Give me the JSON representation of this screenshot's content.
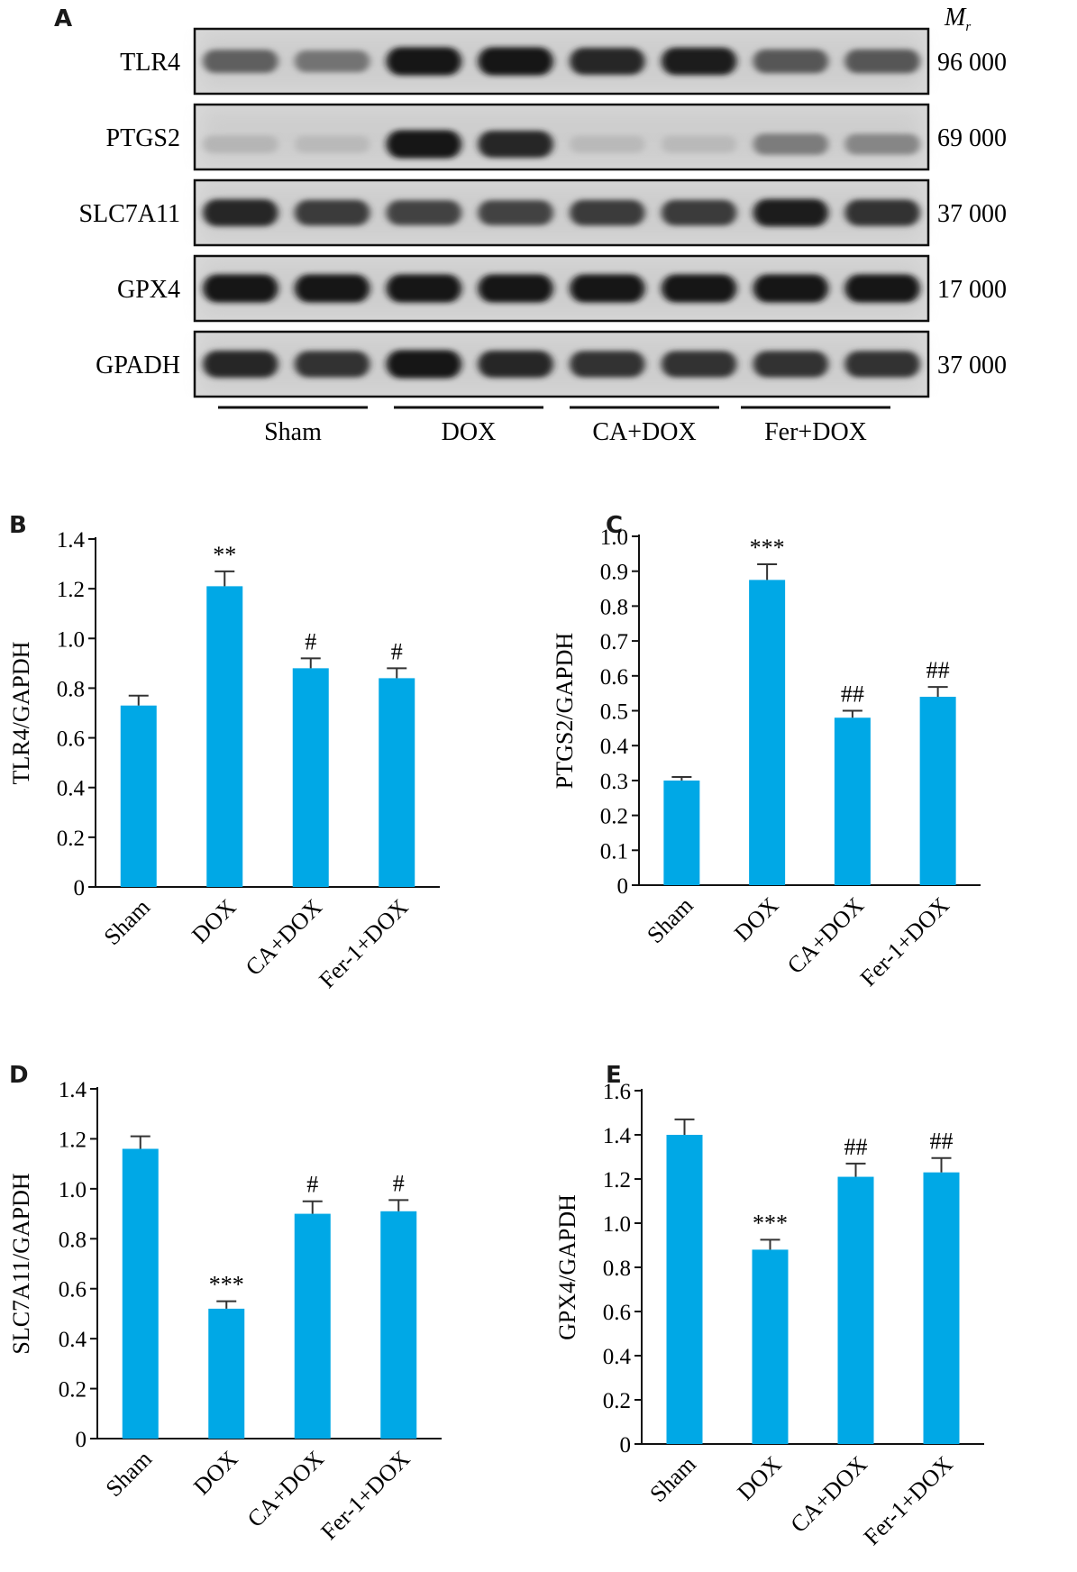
{
  "panels": [
    "A",
    "B",
    "C",
    "D",
    "E"
  ],
  "blot": {
    "mr_label": "M",
    "mr_sub": "r",
    "rows": [
      {
        "name": "TLR4",
        "mw": "96 000",
        "intensity": [
          0.55,
          0.45,
          0.95,
          0.95,
          0.85,
          0.9,
          0.6,
          0.6
        ]
      },
      {
        "name": "PTGS2",
        "mw": "69 000",
        "intensity": [
          0.1,
          0.08,
          0.95,
          0.85,
          0.08,
          0.08,
          0.4,
          0.35
        ]
      },
      {
        "name": "SLC7A11",
        "mw": "37 000",
        "intensity": [
          0.85,
          0.75,
          0.7,
          0.7,
          0.75,
          0.75,
          0.9,
          0.8
        ]
      },
      {
        "name": "GPX4",
        "mw": "17 000",
        "intensity": [
          0.95,
          0.95,
          0.95,
          0.95,
          0.95,
          0.95,
          0.95,
          0.95
        ]
      },
      {
        "name": "GPADH",
        "mw": "37 000",
        "intensity": [
          0.85,
          0.8,
          0.95,
          0.85,
          0.8,
          0.8,
          0.8,
          0.8
        ]
      }
    ],
    "groups": [
      "Sham",
      "DOX",
      "CA+DOX",
      "Fer+DOX"
    ]
  },
  "chart_data": [
    {
      "panel": "B",
      "type": "bar",
      "categories": [
        "Sham",
        "DOX",
        "CA+DOX",
        "Fer-1+DOX"
      ],
      "values": [
        0.73,
        1.21,
        0.88,
        0.84
      ],
      "errors": [
        0.04,
        0.06,
        0.04,
        0.04
      ],
      "annotations": [
        "",
        "**",
        "#",
        "#"
      ],
      "ylabel": "TLR4/GAPDH",
      "ylim": [
        0,
        1.4
      ],
      "yticks": [
        "0",
        "0.2",
        "0.4",
        "0.6",
        "0.8",
        "1.0",
        "1.2",
        "1.4"
      ],
      "color": "#00a8e6"
    },
    {
      "panel": "C",
      "type": "bar",
      "categories": [
        "Sham",
        "DOX",
        "CA+DOX",
        "Fer-1+DOX"
      ],
      "values": [
        0.3,
        0.875,
        0.48,
        0.54
      ],
      "errors": [
        0.01,
        0.045,
        0.02,
        0.028
      ],
      "annotations": [
        "",
        "***",
        "##",
        "##"
      ],
      "ylabel": "PTGS2/GAPDH",
      "ylim": [
        0,
        1.0
      ],
      "yticks": [
        "0",
        "0.1",
        "0.2",
        "0.3",
        "0.4",
        "0.5",
        "0.6",
        "0.7",
        "0.8",
        "0.9",
        "1.0"
      ],
      "color": "#00a8e6"
    },
    {
      "panel": "D",
      "type": "bar",
      "categories": [
        "Sham",
        "DOX",
        "CA+DOX",
        "Fer-1+DOX"
      ],
      "values": [
        1.16,
        0.52,
        0.9,
        0.91
      ],
      "errors": [
        0.05,
        0.03,
        0.05,
        0.045
      ],
      "annotations": [
        "",
        "***",
        "#",
        "#"
      ],
      "ylabel": "SLC7A11/GAPDH",
      "ylim": [
        0,
        1.4
      ],
      "yticks": [
        "0",
        "0.2",
        "0.4",
        "0.6",
        "0.8",
        "1.0",
        "1.2",
        "1.4"
      ],
      "color": "#00a8e6"
    },
    {
      "panel": "E",
      "type": "bar",
      "categories": [
        "Sham",
        "DOX",
        "CA+DOX",
        "Fer-1+DOX"
      ],
      "values": [
        1.4,
        0.88,
        1.21,
        1.23
      ],
      "errors": [
        0.07,
        0.045,
        0.06,
        0.065
      ],
      "annotations": [
        "",
        "***",
        "##",
        "##"
      ],
      "ylabel": "GPX4/GAPDH",
      "ylim": [
        0,
        1.6
      ],
      "yticks": [
        "0",
        "0.2",
        "0.4",
        "0.6",
        "0.8",
        "1.0",
        "1.2",
        "1.4",
        "1.6"
      ],
      "color": "#00a8e6"
    }
  ]
}
